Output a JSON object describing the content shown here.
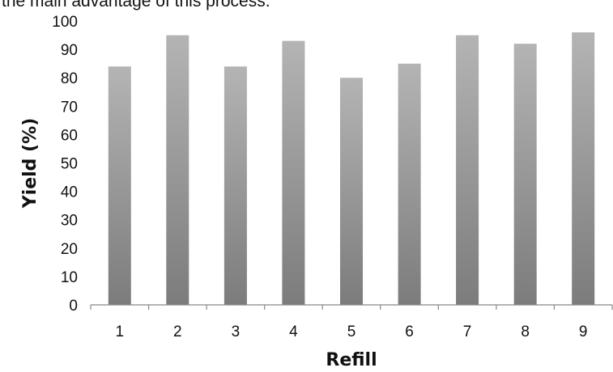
{
  "caption": "the main advantage of this process.",
  "colors": {
    "bar_top": "#b4b4b4",
    "bar_bottom": "#7c7c7c",
    "axis": "#888888"
  },
  "chart_data": {
    "type": "bar",
    "categories": [
      "1",
      "2",
      "3",
      "4",
      "5",
      "6",
      "7",
      "8",
      "9"
    ],
    "values": [
      84,
      95,
      84,
      93,
      80,
      85,
      95,
      92,
      96
    ],
    "xlabel": "Refill",
    "ylabel": "Yield (%)",
    "ylim": [
      0,
      100
    ],
    "yticks": [
      0,
      10,
      20,
      30,
      40,
      50,
      60,
      70,
      80,
      90,
      100
    ],
    "grid": false,
    "legend": "none"
  }
}
